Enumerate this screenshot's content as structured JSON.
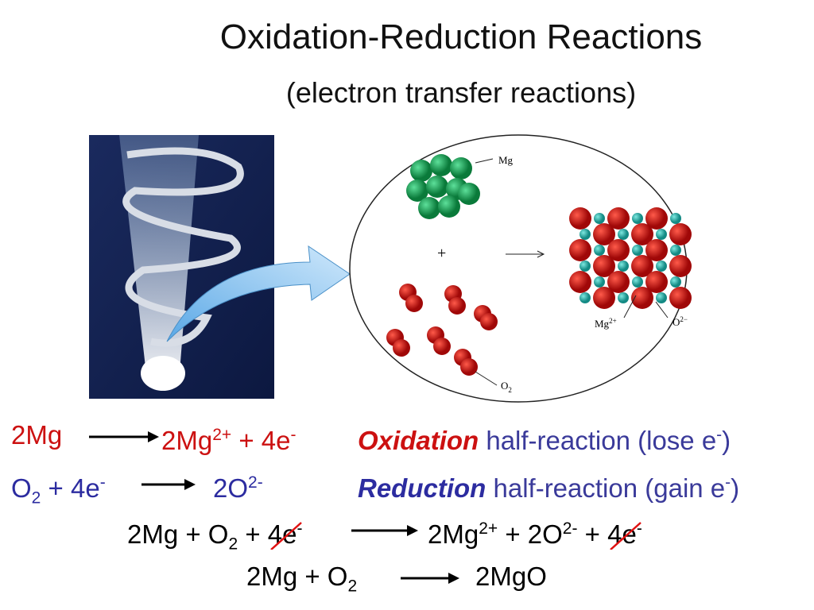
{
  "header": {
    "title": "Oxidation-Reduction Reactions",
    "subtitle": "(electron transfer reactions)"
  },
  "diagram": {
    "mg_label": "Mg",
    "plus": "+",
    "mg_ion": {
      "t": "Mg",
      "sup": "2+"
    },
    "o_ion": {
      "t": "O",
      "sup": "2−"
    },
    "o2_label": {
      "t": "O",
      "sub": "2"
    }
  },
  "equations": [
    {
      "lhs": [
        {
          "t": "2Mg"
        }
      ],
      "rhs": [
        {
          "t": "2Mg",
          "sup": "2+"
        },
        {
          "t": " + 4e",
          "sup": "-"
        }
      ],
      "label": [
        {
          "t": "Oxidation",
          "emph": true
        },
        {
          "t": " half-reaction (lose e",
          "sup": "-"
        },
        {
          "t": ")"
        }
      ]
    },
    {
      "lhs": [
        {
          "t": "O",
          "sub": "2"
        },
        {
          "t": " + 4e",
          "sup": "-"
        }
      ],
      "rhs": [
        {
          "t": "2O",
          "sup": "2-"
        }
      ],
      "label": [
        {
          "t": "Reduction",
          "emph": true
        },
        {
          "t": " half-reaction (gain e",
          "sup": "-"
        },
        {
          "t": ")"
        }
      ]
    },
    {
      "lhs": [
        {
          "t": "2Mg + O",
          "sub": "2"
        },
        {
          "t": " + "
        },
        {
          "t": "4e",
          "sup": "-",
          "struck": true
        }
      ],
      "rhs": [
        {
          "t": "2Mg",
          "sup": "2+"
        },
        {
          "t": " + 2O",
          "sup": "2-"
        },
        {
          "t": " + "
        },
        {
          "t": "4e",
          "sup": "-",
          "struck": true
        }
      ]
    },
    {
      "lhs": [
        {
          "t": "2Mg + O",
          "sub": "2"
        }
      ],
      "rhs": [
        {
          "t": "2MgO"
        }
      ]
    }
  ]
}
